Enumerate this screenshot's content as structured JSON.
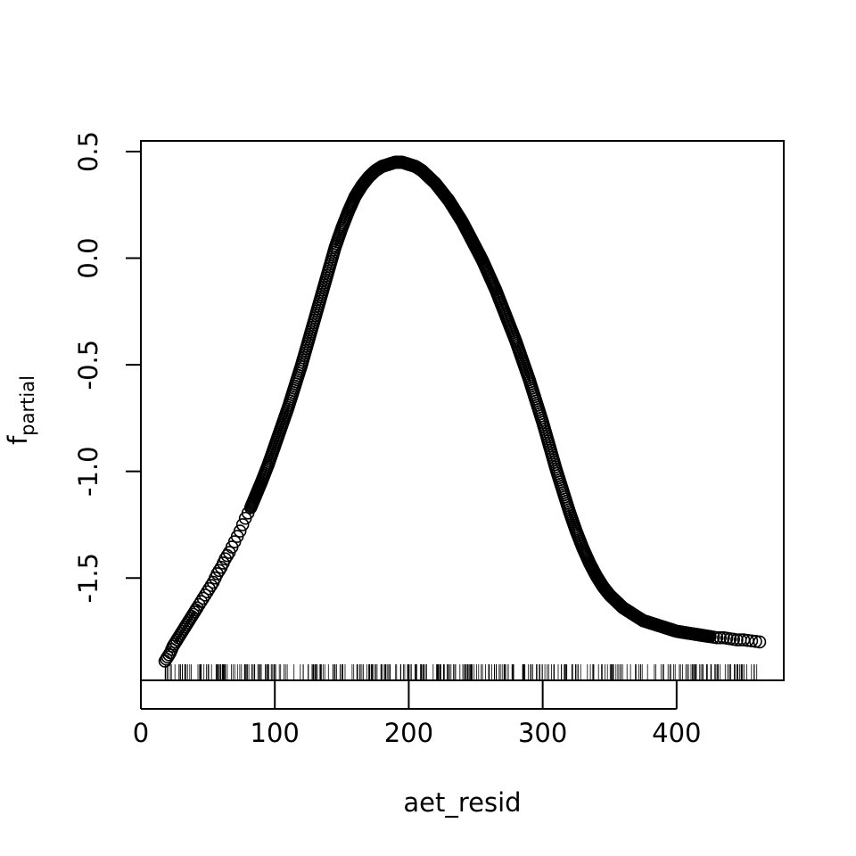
{
  "chart_data": {
    "type": "scatter",
    "xlabel": "aet_resid",
    "ylabel_main": "f",
    "ylabel_sub": "partial",
    "xlim": [
      0,
      480
    ],
    "ylim": [
      -1.98,
      0.55
    ],
    "x_ticks": [
      0,
      100,
      200,
      300,
      400
    ],
    "x_tick_labels": [
      "0",
      "100",
      "200",
      "300",
      "400"
    ],
    "y_ticks": [
      -1.5,
      -1.0,
      -0.5,
      0.0,
      0.5
    ],
    "y_tick_labels": [
      "-1.5",
      "-1.0",
      "-0.5",
      "0.0",
      "0.5"
    ],
    "grid": false,
    "legend": "none",
    "series": [
      {
        "marker": "open-circle",
        "color": "#000000",
        "x": [
          18,
          20,
          22,
          24,
          26,
          28,
          30,
          32,
          34,
          36,
          38,
          40,
          42,
          45,
          48,
          51,
          54,
          57,
          60,
          63,
          66,
          70,
          74,
          78,
          82,
          86,
          90,
          95,
          100,
          105,
          110,
          115,
          120,
          125,
          130,
          135,
          140,
          145,
          150,
          155,
          160,
          165,
          170,
          175,
          180,
          185,
          190,
          195,
          200,
          205,
          210,
          215,
          220,
          225,
          230,
          235,
          240,
          245,
          250,
          255,
          260,
          265,
          270,
          275,
          280,
          285,
          290,
          295,
          300,
          305,
          310,
          315,
          320,
          325,
          330,
          335,
          340,
          345,
          350,
          355,
          360,
          365,
          370,
          375,
          380,
          385,
          390,
          395,
          400,
          405,
          410,
          415,
          420,
          425,
          430,
          435,
          440,
          445,
          450,
          456,
          462
        ],
        "y": [
          -1.89,
          -1.87,
          -1.85,
          -1.82,
          -1.8,
          -1.78,
          -1.76,
          -1.74,
          -1.72,
          -1.7,
          -1.68,
          -1.66,
          -1.64,
          -1.61,
          -1.58,
          -1.55,
          -1.52,
          -1.48,
          -1.45,
          -1.41,
          -1.38,
          -1.33,
          -1.28,
          -1.22,
          -1.17,
          -1.11,
          -1.05,
          -0.97,
          -0.88,
          -0.79,
          -0.7,
          -0.6,
          -0.5,
          -0.39,
          -0.28,
          -0.17,
          -0.06,
          0.05,
          0.14,
          0.22,
          0.29,
          0.34,
          0.38,
          0.41,
          0.43,
          0.44,
          0.45,
          0.45,
          0.44,
          0.43,
          0.41,
          0.38,
          0.35,
          0.31,
          0.27,
          0.22,
          0.17,
          0.11,
          0.05,
          -0.01,
          -0.08,
          -0.15,
          -0.23,
          -0.31,
          -0.39,
          -0.48,
          -0.57,
          -0.67,
          -0.77,
          -0.88,
          -0.99,
          -1.09,
          -1.19,
          -1.28,
          -1.36,
          -1.43,
          -1.49,
          -1.54,
          -1.58,
          -1.61,
          -1.64,
          -1.66,
          -1.68,
          -1.7,
          -1.71,
          -1.72,
          -1.73,
          -1.74,
          -1.75,
          -1.755,
          -1.76,
          -1.765,
          -1.77,
          -1.775,
          -1.78,
          -1.78,
          -1.785,
          -1.79,
          -1.79,
          -1.795,
          -1.8
        ]
      }
    ]
  }
}
